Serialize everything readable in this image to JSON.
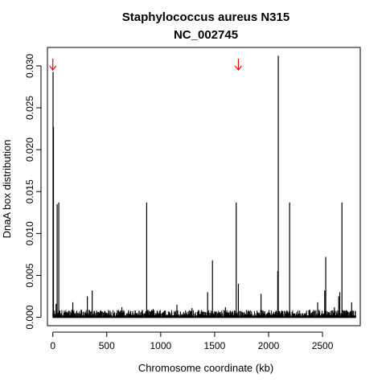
{
  "chart_data": {
    "type": "bar",
    "title": "Staphylococcus aureus N315",
    "subtitle": "NC_002745",
    "xlabel": "Chromosome coordinate (kb)",
    "ylabel": "DnaA box distribution",
    "xlim": [
      -50,
      2850
    ],
    "ylim": [
      -0.001,
      0.0322
    ],
    "x_ticks": [
      0,
      500,
      1000,
      1500,
      2000,
      2500
    ],
    "y_ticks": [
      0.0,
      0.005,
      0.01,
      0.015,
      0.02,
      0.025,
      0.03
    ],
    "y_tick_labels": [
      "0.000",
      "0.005",
      "0.010",
      "0.015",
      "0.020",
      "0.025",
      "0.030"
    ],
    "grid": false,
    "bar_color": "#000000",
    "marker_color": "#ff0000",
    "markers": [
      {
        "x": 0,
        "icon": "down-arrow"
      },
      {
        "x": 1720,
        "icon": "down-arrow"
      }
    ],
    "peaks": [
      {
        "x": 2,
        "y": 0.0293
      },
      {
        "x": 6,
        "y": 0.0227
      },
      {
        "x": 40,
        "y": 0.0135
      },
      {
        "x": 55,
        "y": 0.0137
      },
      {
        "x": 870,
        "y": 0.0137
      },
      {
        "x": 1700,
        "y": 0.0137
      },
      {
        "x": 2085,
        "y": 0.0055
      },
      {
        "x": 2090,
        "y": 0.0312
      },
      {
        "x": 2195,
        "y": 0.0137
      },
      {
        "x": 2530,
        "y": 0.0072
      },
      {
        "x": 2680,
        "y": 0.0137
      },
      {
        "x": 1480,
        "y": 0.0068
      },
      {
        "x": 1720,
        "y": 0.004
      },
      {
        "x": 1435,
        "y": 0.003
      },
      {
        "x": 2520,
        "y": 0.0032
      },
      {
        "x": 2660,
        "y": 0.003
      },
      {
        "x": 2650,
        "y": 0.0025
      },
      {
        "x": 365,
        "y": 0.0032
      },
      {
        "x": 320,
        "y": 0.0025
      },
      {
        "x": 1930,
        "y": 0.0028
      },
      {
        "x": 2770,
        "y": 0.0018
      },
      {
        "x": 2455,
        "y": 0.0018
      },
      {
        "x": 185,
        "y": 0.0018
      },
      {
        "x": 1150,
        "y": 0.0015
      },
      {
        "x": 30,
        "y": 0.0016
      },
      {
        "x": 2610,
        "y": 0.0012
      },
      {
        "x": 1600,
        "y": 0.0012
      },
      {
        "x": 640,
        "y": 0.0012
      },
      {
        "x": 1290,
        "y": 0.0011
      },
      {
        "x": 930,
        "y": 0.001
      }
    ],
    "baseline": {
      "from": 0,
      "to": 2810,
      "step": 3,
      "max": 0.0009
    }
  }
}
